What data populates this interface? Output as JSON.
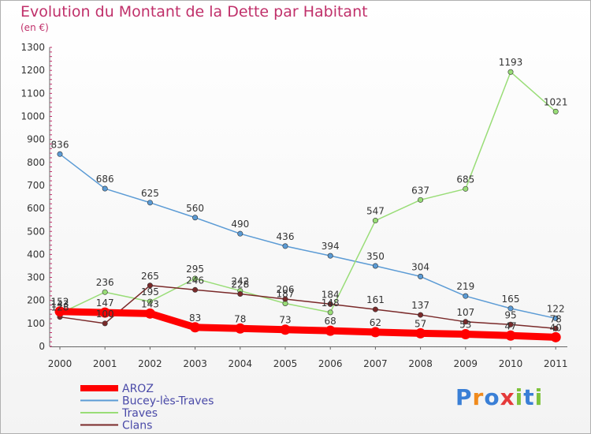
{
  "chart_data": {
    "type": "line",
    "title": "Evolution du Montant de la Dette par Habitant",
    "ylabel": "(en €)",
    "ylim": [
      0,
      1300
    ],
    "yticks": [
      0,
      100,
      200,
      300,
      400,
      500,
      600,
      700,
      800,
      900,
      1000,
      1100,
      1200,
      1300
    ],
    "categories": [
      "2000",
      "2001",
      "2002",
      "2003",
      "2004",
      "2005",
      "2006",
      "2007",
      "2008",
      "2009",
      "2010",
      "2011"
    ],
    "series": [
      {
        "name": "AROZ",
        "color": "#ff0000",
        "values": [
          152,
          147,
          143,
          83,
          78,
          73,
          68,
          62,
          57,
          53,
          47,
          40
        ]
      },
      {
        "name": "Bucey-lès-Traves",
        "color": "#5b9bd5",
        "values": [
          836,
          686,
          625,
          560,
          490,
          436,
          394,
          350,
          304,
          219,
          165,
          122
        ]
      },
      {
        "name": "Traves",
        "color": "#99dd77",
        "values": [
          143,
          236,
          195,
          295,
          242,
          187,
          148,
          547,
          637,
          685,
          1193,
          1021
        ]
      },
      {
        "name": "Clans",
        "color": "#7a2a2a",
        "values": [
          128,
          100,
          265,
          246,
          228,
          206,
          184,
          161,
          137,
          107,
          95,
          78
        ]
      }
    ]
  },
  "brand": {
    "text": "Proxiti"
  }
}
